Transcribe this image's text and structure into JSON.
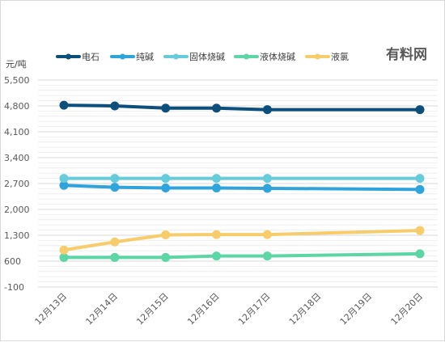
{
  "chart_data": {
    "type": "line",
    "title": "",
    "ylabel": "元/吨",
    "xlabel": "",
    "ylim": [
      -100,
      5500
    ],
    "yticks": [
      -100,
      600,
      1300,
      2000,
      2700,
      3400,
      4100,
      4800,
      5500
    ],
    "ytick_labels": [
      "-100",
      "600",
      "1,300",
      "2,000",
      "2,700",
      "3,400",
      "4,100",
      "4,800",
      "5,500"
    ],
    "categories": [
      "12月13日",
      "12月14日",
      "12月15日",
      "12月16日",
      "12月17日",
      "12月18日",
      "12月19日",
      "12月20日"
    ],
    "series": [
      {
        "name": "电石",
        "color": "#0d4f7c",
        "values": [
          4820,
          4800,
          4740,
          4740,
          4700,
          null,
          null,
          4700
        ]
      },
      {
        "name": "纯碱",
        "color": "#2fa4dc",
        "values": [
          2650,
          2600,
          2580,
          2580,
          2570,
          null,
          null,
          2540
        ]
      },
      {
        "name": "固体烧碱",
        "color": "#66cbdb",
        "values": [
          2840,
          2840,
          2840,
          2840,
          2840,
          null,
          null,
          2840
        ]
      },
      {
        "name": "液体烧碱",
        "color": "#5bd6a4",
        "values": [
          700,
          700,
          700,
          740,
          740,
          null,
          null,
          800
        ]
      },
      {
        "name": "液氯",
        "color": "#f7cd6b",
        "values": [
          900,
          1120,
          1310,
          1320,
          1320,
          null,
          null,
          1430
        ]
      }
    ],
    "grid": true,
    "legend": "top-left"
  },
  "brand": "有料网"
}
